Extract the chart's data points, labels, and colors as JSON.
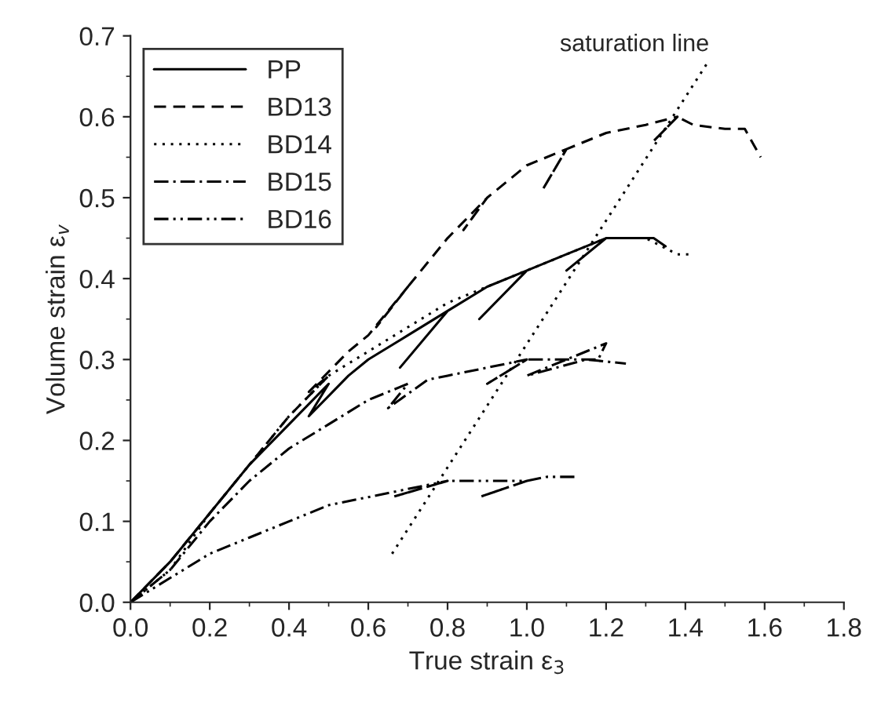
{
  "chart_data": {
    "type": "line",
    "xlabel": "True strain ε$_{3}$",
    "ylabel": "Volume strain ε$_{v}$",
    "xlim": [
      0.0,
      1.8
    ],
    "ylim": [
      0.0,
      0.7
    ],
    "xticks": [
      {
        "value": 0.0,
        "label": "0.0"
      },
      {
        "value": 0.2,
        "label": "0.2"
      },
      {
        "value": 0.4,
        "label": "0.4"
      },
      {
        "value": 0.6,
        "label": "0.6"
      },
      {
        "value": 0.8,
        "label": "0.8"
      },
      {
        "value": 1.0,
        "label": "1.0"
      },
      {
        "value": 1.2,
        "label": "1.2"
      },
      {
        "value": 1.4,
        "label": "1.4"
      },
      {
        "value": 1.6,
        "label": "1.6"
      },
      {
        "value": 1.8,
        "label": "1.8"
      }
    ],
    "yticks": [
      {
        "value": 0.0,
        "label": "0.0"
      },
      {
        "value": 0.1,
        "label": "0.1"
      },
      {
        "value": 0.2,
        "label": "0.2"
      },
      {
        "value": 0.3,
        "label": "0.3"
      },
      {
        "value": 0.4,
        "label": "0.4"
      },
      {
        "value": 0.5,
        "label": "0.5"
      },
      {
        "value": 0.6,
        "label": "0.6"
      },
      {
        "value": 0.7,
        "label": "0.7"
      }
    ],
    "grid": false,
    "legend": "top left",
    "marker": "none",
    "series": [
      {
        "name": "PP",
        "color": "#000000",
        "line_style": "solid",
        "x": [
          0,
          0.1,
          0.2,
          0.3,
          0.4,
          0.5,
          0.45,
          0.55,
          0.6,
          0.7,
          0.8,
          0.68,
          0.8,
          0.9,
          1.0,
          0.88,
          1.0,
          1.1,
          1.2,
          1.1,
          1.2,
          1.27,
          1.32,
          1.35
        ],
        "values": [
          0,
          0.05,
          0.11,
          0.17,
          0.22,
          0.27,
          0.23,
          0.28,
          0.3,
          0.33,
          0.36,
          0.29,
          0.36,
          0.39,
          0.41,
          0.35,
          0.41,
          0.43,
          0.45,
          0.41,
          0.45,
          0.45,
          0.45,
          0.44
        ]
      },
      {
        "name": "BD13",
        "color": "#000000",
        "line_style": "dashed",
        "x": [
          0,
          0.1,
          0.2,
          0.3,
          0.4,
          0.5,
          0.45,
          0.55,
          0.6,
          0.7,
          0.62,
          0.7,
          0.8,
          0.9,
          0.84,
          0.9,
          1.0,
          1.1,
          1.04,
          1.1,
          1.2,
          1.3,
          1.38,
          1.32,
          1.38,
          1.42,
          1.5,
          1.55,
          1.59
        ],
        "values": [
          0,
          0.05,
          0.11,
          0.17,
          0.23,
          0.28,
          0.26,
          0.31,
          0.33,
          0.39,
          0.34,
          0.39,
          0.45,
          0.5,
          0.46,
          0.5,
          0.54,
          0.56,
          0.51,
          0.56,
          0.58,
          0.59,
          0.6,
          0.57,
          0.6,
          0.59,
          0.585,
          0.585,
          0.55
        ]
      },
      {
        "name": "BD14",
        "color": "#000000",
        "line_style": "dotted",
        "x": [
          0,
          0.1,
          0.2,
          0.3,
          0.4,
          0.5,
          0.6,
          0.7,
          0.8,
          0.9,
          1.0,
          1.1,
          1.2,
          1.3,
          1.38,
          1.42
        ],
        "values": [
          0,
          0.04,
          0.11,
          0.17,
          0.23,
          0.28,
          0.31,
          0.34,
          0.37,
          0.39,
          0.41,
          0.43,
          0.45,
          0.45,
          0.43,
          0.43
        ]
      },
      {
        "name": "BD15",
        "color": "#000000",
        "line_style": "dashdot",
        "x": [
          0,
          0.1,
          0.2,
          0.3,
          0.4,
          0.5,
          0.6,
          0.7,
          0.65,
          0.75,
          0.8,
          0.9,
          1.0,
          0.9,
          1.0,
          1.1,
          1.18,
          1.2,
          1.0,
          1.15,
          1.25
        ],
        "values": [
          0,
          0.04,
          0.1,
          0.15,
          0.19,
          0.22,
          0.25,
          0.27,
          0.24,
          0.275,
          0.28,
          0.29,
          0.3,
          0.27,
          0.3,
          0.3,
          0.3,
          0.32,
          0.28,
          0.3,
          0.295
        ]
      },
      {
        "name": "BD16",
        "color": "#000000",
        "line_style": "dashdotdot",
        "x": [
          0,
          0.1,
          0.2,
          0.3,
          0.4,
          0.5,
          0.6,
          0.7,
          0.8,
          0.66,
          0.8,
          0.9,
          1.0,
          0.88,
          1.0,
          1.05,
          1.12
        ],
        "values": [
          0,
          0.03,
          0.06,
          0.08,
          0.1,
          0.12,
          0.13,
          0.14,
          0.15,
          0.13,
          0.15,
          0.15,
          0.15,
          0.13,
          0.15,
          0.155,
          0.155
        ]
      },
      {
        "name": "saturation line",
        "color": "#000000",
        "line_style": "dotted",
        "x": [
          0.66,
          1.46
        ],
        "values": [
          0.06,
          0.67
        ]
      }
    ]
  }
}
